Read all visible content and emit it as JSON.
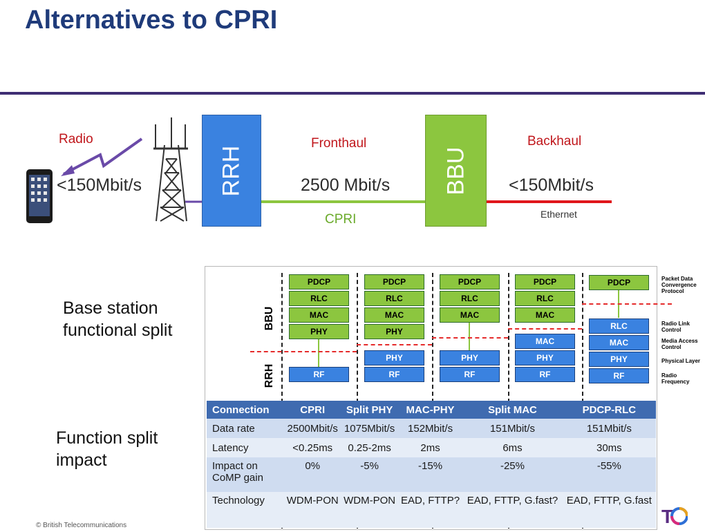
{
  "slide": {
    "title": "Alternatives to CPRI",
    "copyright": "© British Telecommunications"
  },
  "colors": {
    "title": "#1f3b7a",
    "rule": "#3f2e73",
    "rrh_box": "#3a82e0",
    "bbu_box": "#8cc63f",
    "radio_link": "#6a4aa8",
    "cpri_line": "#8cc63f",
    "ethernet_line": "#e0161b",
    "split_line": "#e52b2b",
    "table_header": "#3f6bb0"
  },
  "diagram": {
    "radio_label": "Radio",
    "radio_rate": "<150Mbit/s",
    "rrh_label": "RRH",
    "fronthaul_label": "Fronthaul",
    "fronthaul_rate": "2500 Mbit/s",
    "cpri_label": "CPRI",
    "bbu_label": "BBU",
    "backhaul_label": "Backhaul",
    "backhaul_rate": "<150Mbit/s",
    "ethernet_label": "Ethernet",
    "icons": [
      "phone-icon",
      "lightning-bolt-icon",
      "cell-tower-icon"
    ]
  },
  "split": {
    "side_label_top": "Base station functional split",
    "bbu_axis": "BBU",
    "rrh_axis": "RRH",
    "layers": {
      "pdcp": "PDCP",
      "rlc": "RLC",
      "mac": "MAC",
      "phy": "PHY",
      "rf": "RF"
    },
    "legend": {
      "pdcp": "Packet Data Convergence Protocol",
      "rlc": "Radio Link Control",
      "mac": "Media Access Control",
      "phy": "Physical Layer",
      "rf": "Radio Frequency"
    }
  },
  "impact": {
    "side_label": "Function split impact",
    "header": [
      "Connection",
      "CPRI",
      "Split PHY",
      "MAC-PHY",
      "Split MAC",
      "PDCP-RLC"
    ],
    "rows": [
      [
        "Data rate",
        "2500Mbit/s",
        "1075Mbit/s",
        "152Mbit/s",
        "151Mbit/s",
        "151Mbit/s"
      ],
      [
        "Latency",
        "<0.25ms",
        "0.25-2ms",
        "2ms",
        "6ms",
        "30ms"
      ],
      [
        "Impact on CoMP gain",
        "0%",
        "-5%",
        "-15%",
        "-25%",
        "-55%"
      ],
      [
        "Technology",
        "WDM-PON",
        "WDM-PON",
        "EAD, FTTP?",
        "EAD, FTTP, G.fast?",
        "EAD, FTTP, G.fast"
      ]
    ]
  }
}
